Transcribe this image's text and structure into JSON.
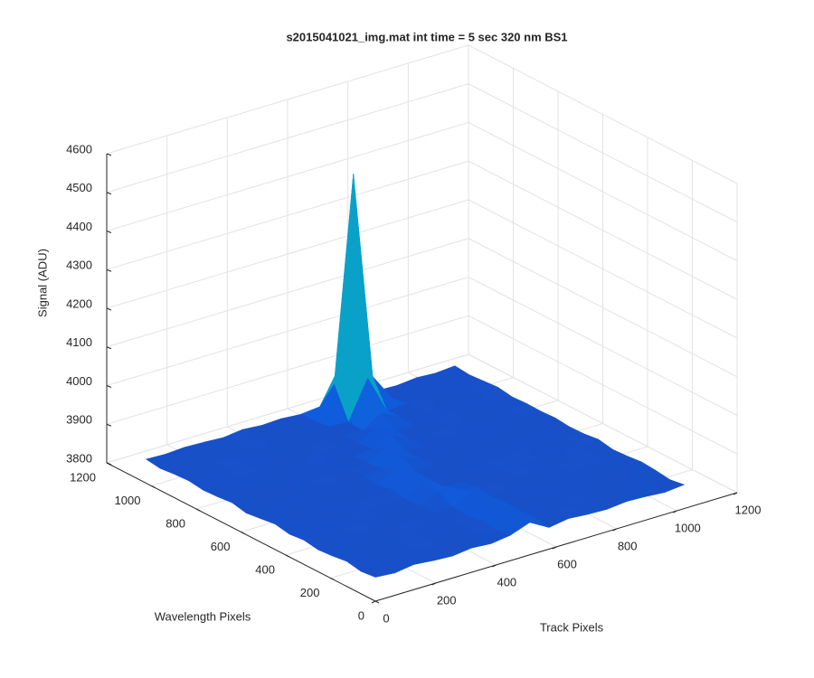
{
  "chart_data": {
    "type": "surface",
    "title": "s2015041021_img.mat int time = 5 sec  320 nm BS1",
    "xlabel": "Track Pixels",
    "ylabel": "Wavelength Pixels",
    "zlabel": "Signal (ADU)",
    "x": [
      0,
      64,
      128,
      192,
      256,
      320,
      384,
      448,
      512,
      576,
      640,
      704,
      768,
      832,
      896,
      960,
      1024
    ],
    "y": [
      0,
      64,
      128,
      192,
      256,
      320,
      384,
      448,
      512,
      576,
      640,
      704,
      768,
      832,
      896,
      960,
      1024
    ],
    "z": [
      [
        3862,
        3858,
        3865,
        3860,
        3857,
        3863,
        3859,
        3866,
        3884,
        3856,
        3864,
        3860,
        3858,
        3863,
        3861,
        3857,
        3862
      ],
      [
        3858,
        3863,
        3860,
        3866,
        3861,
        3857,
        3864,
        3860,
        3882,
        3863,
        3859,
        3865,
        3861,
        3858,
        3864,
        3860,
        3856
      ],
      [
        3865,
        3860,
        3857,
        3862,
        3864,
        3859,
        3861,
        3863,
        3886,
        3860,
        3862,
        3857,
        3864,
        3860,
        3859,
        3863,
        3861
      ],
      [
        3860,
        3864,
        3861,
        3858,
        3863,
        3860,
        3866,
        3858,
        3884,
        3862,
        3858,
        3863,
        3860,
        3866,
        3857,
        3861,
        3864
      ],
      [
        3857,
        3861,
        3863,
        3860,
        3859,
        3865,
        3860,
        3862,
        3887,
        3859,
        3864,
        3861,
        3857,
        3862,
        3864,
        3859,
        3860
      ],
      [
        3863,
        3859,
        3860,
        3865,
        3861,
        3858,
        3863,
        3880,
        3876,
        3864,
        3860,
        3858,
        3865,
        3860,
        3861,
        3863,
        3858
      ],
      [
        3859,
        3865,
        3862,
        3857,
        3864,
        3861,
        3859,
        3888,
        3863,
        3860,
        3857,
        3864,
        3861,
        3859,
        3863,
        3860,
        3865
      ],
      [
        3866,
        3860,
        3858,
        3863,
        3860,
        3862,
        3865,
        3885,
        3861,
        3858,
        3863,
        3860,
        3862,
        3866,
        3858,
        3862,
        3860
      ],
      [
        3861,
        3857,
        3864,
        3860,
        3858,
        3863,
        3860,
        3886,
        3864,
        3861,
        3859,
        3863,
        3860,
        3857,
        3864,
        3861,
        3859
      ],
      [
        3856,
        3863,
        3860,
        3862,
        3865,
        3859,
        3861,
        3866,
        3882,
        3860,
        3862,
        3858,
        3864,
        3861,
        3860,
        3857,
        3863
      ],
      [
        3864,
        3860,
        3857,
        3861,
        3863,
        3860,
        3858,
        3862,
        3888,
        3863,
        3860,
        3865,
        3859,
        3862,
        3863,
        3860,
        3861
      ],
      [
        3860,
        3858,
        3863,
        3859,
        3861,
        3866,
        3862,
        3859,
        3864,
        3884,
        3858,
        3861,
        3863,
        3860,
        3857,
        3864,
        3862
      ],
      [
        3858,
        3864,
        3861,
        3863,
        3857,
        3860,
        3864,
        3861,
        3860,
        3887,
        3862,
        3859,
        3860,
        3864,
        3862,
        3858,
        3860
      ],
      [
        3863,
        3861,
        3859,
        3864,
        3862,
        3858,
        3860,
        3863,
        3861,
        3858,
        3890,
        3863,
        3862,
        3859,
        3861,
        3863,
        3866
      ],
      [
        3861,
        3857,
        3864,
        3860,
        3859,
        3863,
        3862,
        3858,
        3864,
        3861,
        3960,
        3860,
        3864,
        3862,
        3858,
        3861,
        3863
      ],
      [
        3857,
        3862,
        3860,
        3858,
        3864,
        3861,
        3857,
        3864,
        3860,
        3940,
        4470,
        3930,
        3859,
        3861,
        3864,
        3862,
        3860
      ],
      [
        3862,
        3860,
        3863,
        3861,
        3858,
        3864,
        3860,
        3862,
        3858,
        3863,
        3950,
        3862,
        3860,
        3858,
        3863,
        3860,
        3864
      ]
    ],
    "xlim": [
      0,
      1200
    ],
    "ylim": [
      0,
      1200
    ],
    "zlim": [
      3800,
      4600
    ],
    "xticks": [
      0,
      200,
      400,
      600,
      800,
      1000,
      1200
    ],
    "yticks": [
      0,
      200,
      400,
      600,
      800,
      1000,
      1200
    ],
    "zticks": [
      3800,
      3900,
      4000,
      4100,
      4200,
      4300,
      4400,
      4500,
      4600
    ],
    "grid": true,
    "colormap": "parula"
  }
}
